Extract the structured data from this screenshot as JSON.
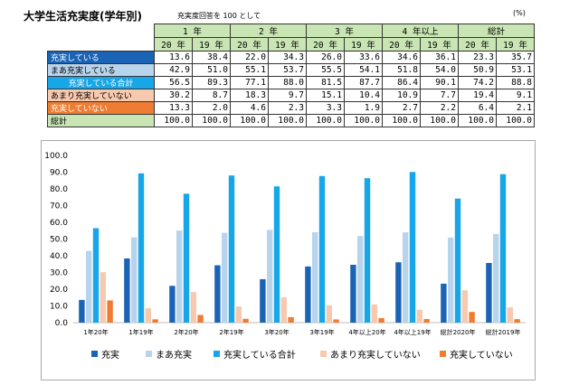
{
  "header": {
    "title": "大学生活充実度(学年別)",
    "subtitle": "充実度回答を 100 として",
    "unit": "(%)"
  },
  "table": {
    "groups": [
      "1 年",
      "2 年",
      "3 年",
      "4 年以上",
      "総計"
    ],
    "years": [
      "20 年",
      "19 年"
    ],
    "rows": [
      {
        "label": "充実している",
        "values": [
          "13.6",
          "38.4",
          "22.0",
          "34.3",
          "26.0",
          "33.6",
          "34.6",
          "36.1",
          "23.3",
          "35.7"
        ]
      },
      {
        "label": "まあ充実している",
        "values": [
          "42.9",
          "51.0",
          "55.1",
          "53.7",
          "55.5",
          "54.1",
          "51.8",
          "54.0",
          "50.9",
          "53.1"
        ]
      },
      {
        "label": "充実している合計",
        "values": [
          "56.5",
          "89.3",
          "77.1",
          "88.0",
          "81.5",
          "87.7",
          "86.4",
          "90.1",
          "74.2",
          "88.8"
        ]
      },
      {
        "label": "あまり充実していない",
        "values": [
          "30.2",
          "8.7",
          "18.3",
          "9.7",
          "15.1",
          "10.4",
          "10.9",
          "7.7",
          "19.4",
          "9.1"
        ]
      },
      {
        "label": "充実していない",
        "values": [
          "13.3",
          "2.0",
          "4.6",
          "2.3",
          "3.3",
          "1.9",
          "2.7",
          "2.2",
          "6.4",
          "2.1"
        ]
      },
      {
        "label": "総計",
        "values": [
          "100.0",
          "100.0",
          "100.0",
          "100.0",
          "100.0",
          "100.0",
          "100.0",
          "100.0",
          "100.0",
          "100.0"
        ]
      }
    ]
  },
  "chart_data": {
    "type": "bar",
    "categories": [
      "1年20年",
      "1年19年",
      "2年20年",
      "2年19年",
      "3年20年",
      "3年19年",
      "4年以上20年",
      "4年以上19年",
      "総計2020年",
      "総計2019年"
    ],
    "series": [
      {
        "name": "充実",
        "color": "#1a63b5",
        "values": [
          13.6,
          38.4,
          22.0,
          34.3,
          26.0,
          33.6,
          34.6,
          36.1,
          23.3,
          35.7
        ]
      },
      {
        "name": "まあ充実",
        "color": "#b8d4ec",
        "values": [
          42.9,
          51.0,
          55.1,
          53.7,
          55.5,
          54.1,
          51.8,
          54.0,
          50.9,
          53.1
        ]
      },
      {
        "name": "充実している合計",
        "color": "#17a6e8",
        "values": [
          56.5,
          89.3,
          77.1,
          88.0,
          81.5,
          87.7,
          86.4,
          90.1,
          74.2,
          88.8
        ]
      },
      {
        "name": "あまり充実していない",
        "color": "#f7c9ae",
        "values": [
          30.2,
          8.7,
          18.3,
          9.7,
          15.1,
          10.4,
          10.9,
          7.7,
          19.4,
          9.1
        ]
      },
      {
        "name": "充実していない",
        "color": "#ee7d33",
        "values": [
          13.3,
          2.0,
          4.6,
          2.3,
          3.3,
          1.9,
          2.7,
          2.2,
          6.4,
          2.1
        ]
      }
    ],
    "yticks": [
      "0.0",
      "10.0",
      "20.0",
      "30.0",
      "40.0",
      "50.0",
      "60.0",
      "70.0",
      "80.0",
      "90.0",
      "100.0"
    ],
    "ylim": [
      0,
      100
    ],
    "grid": false,
    "legend": "bottom"
  }
}
